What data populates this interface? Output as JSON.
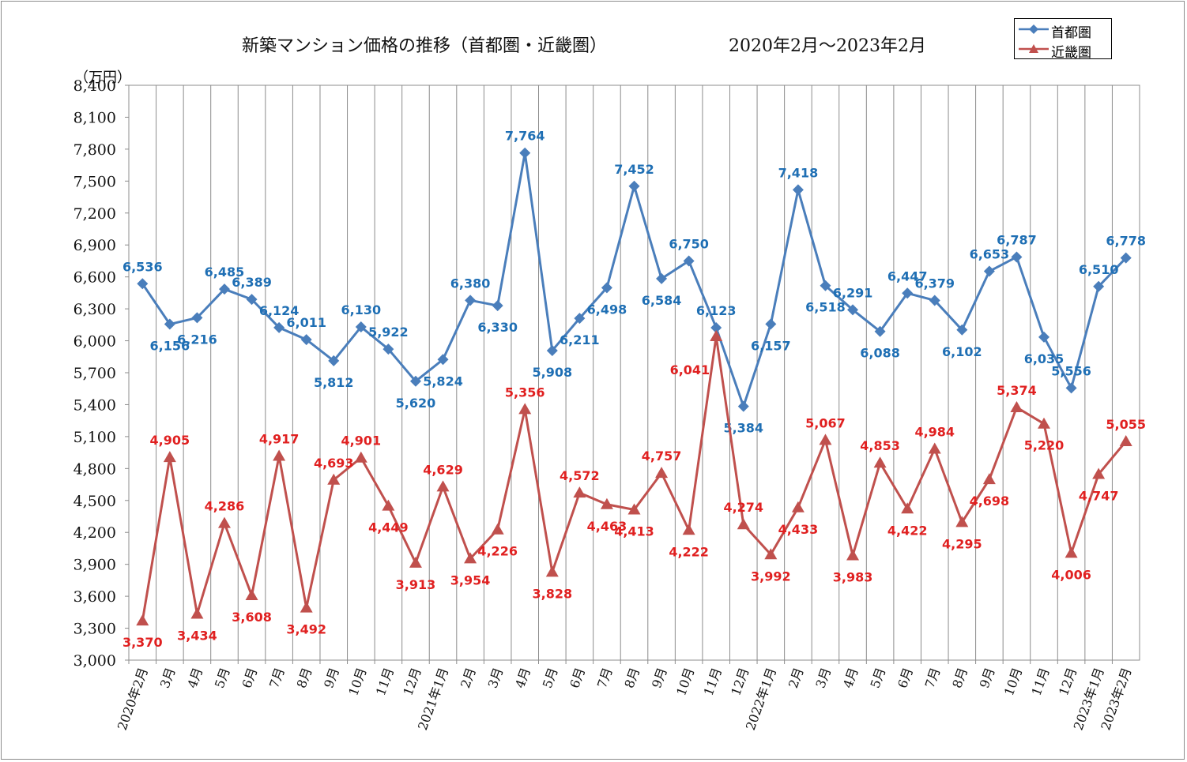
{
  "title": "新築マンション価格の推移（首都圏・近畿圏）",
  "period": "2020年2月～2023年2月",
  "unit": "（万円）",
  "legend": [
    {
      "name": "首都圏",
      "color": "#4a7ebb"
    },
    {
      "name": "近畿圏",
      "color": "#c0504d"
    }
  ],
  "chart_data": {
    "type": "line",
    "title": "新築マンション価格の推移（首都圏・近畿圏）",
    "subtitle": "2020年2月～2023年2月",
    "ylabel": "（万円）",
    "ylim": [
      3000,
      8400
    ],
    "ytick_step": 300,
    "yticks": [
      "3,000",
      "3,300",
      "3,600",
      "3,900",
      "4,200",
      "4,500",
      "4,800",
      "5,100",
      "5,400",
      "5,700",
      "6,000",
      "6,300",
      "6,600",
      "6,900",
      "7,200",
      "7,500",
      "7,800",
      "8,100",
      "8,400"
    ],
    "grid": "vertical",
    "legend_position": "top-right",
    "categories": [
      "2020年2月",
      "3月",
      "4月",
      "5月",
      "6月",
      "7月",
      "8月",
      "9月",
      "10月",
      "11月",
      "12月",
      "2021年1月",
      "2月",
      "3月",
      "4月",
      "5月",
      "6月",
      "7月",
      "8月",
      "9月",
      "10月",
      "11月",
      "12月",
      "2022年1月",
      "2月",
      "3月",
      "4月",
      "5月",
      "6月",
      "7月",
      "8月",
      "9月",
      "10月",
      "11月",
      "12月",
      "2023年1月",
      "2023年2月"
    ],
    "series": [
      {
        "name": "首都圏",
        "color": "#4a7ebb",
        "label_color": "#1f6fb4",
        "marker": "diamond",
        "values": [
          6536,
          6156,
          6216,
          6485,
          6389,
          6124,
          6011,
          5812,
          6130,
          5922,
          5620,
          5824,
          6380,
          6330,
          7764,
          5908,
          6211,
          6498,
          7452,
          6584,
          6750,
          6123,
          5384,
          6157,
          7418,
          6518,
          6291,
          6088,
          6447,
          6379,
          6102,
          6653,
          6787,
          6035,
          5556,
          6510,
          6778
        ],
        "labels": [
          "6,536",
          "6,156",
          "6,216",
          "6,485",
          "6,389",
          "6,124",
          "6,011",
          "5,812",
          "6,130",
          "5,922",
          "5,620",
          "5,824",
          "6,380",
          "6,330",
          "7,764",
          "5,908",
          "6,211",
          "6,498",
          "7,452",
          "6,584",
          "6,750",
          "6,123",
          "5,384",
          "6,157",
          "7,418",
          "6,518",
          "6,291",
          "6,088",
          "6,447",
          "6,379",
          "6,102",
          "6,653",
          "6,787",
          "6,035",
          "5,556",
          "6,510",
          "6,778"
        ]
      },
      {
        "name": "近畿圏",
        "color": "#c0504d",
        "label_color": "#e02020",
        "marker": "triangle",
        "values": [
          3370,
          4905,
          3434,
          4286,
          3608,
          4917,
          3492,
          4693,
          4901,
          4449,
          3913,
          4629,
          3954,
          4226,
          5356,
          3828,
          4572,
          4463,
          4413,
          4757,
          4222,
          6041,
          4274,
          3992,
          4433,
          5067,
          3983,
          4853,
          4422,
          4984,
          4295,
          4698,
          5374,
          5220,
          4006,
          4747,
          5055
        ],
        "labels": [
          "3,370",
          "4,905",
          "3,434",
          "4,286",
          "3,608",
          "4,917",
          "3,492",
          "4,693",
          "4,901",
          "4,449",
          "3,913",
          "4,629",
          "3,954",
          "4,226",
          "5,356",
          "3,828",
          "4,572",
          "4,463",
          "4,413",
          "4,757",
          "4,222",
          "6,041",
          "4,274",
          "3,992",
          "4,433",
          "5,067",
          "3,983",
          "4,853",
          "4,422",
          "4,984",
          "4,295",
          "4,698",
          "5,374",
          "5,220",
          "4,006",
          "4,747",
          "5,055"
        ]
      }
    ]
  }
}
